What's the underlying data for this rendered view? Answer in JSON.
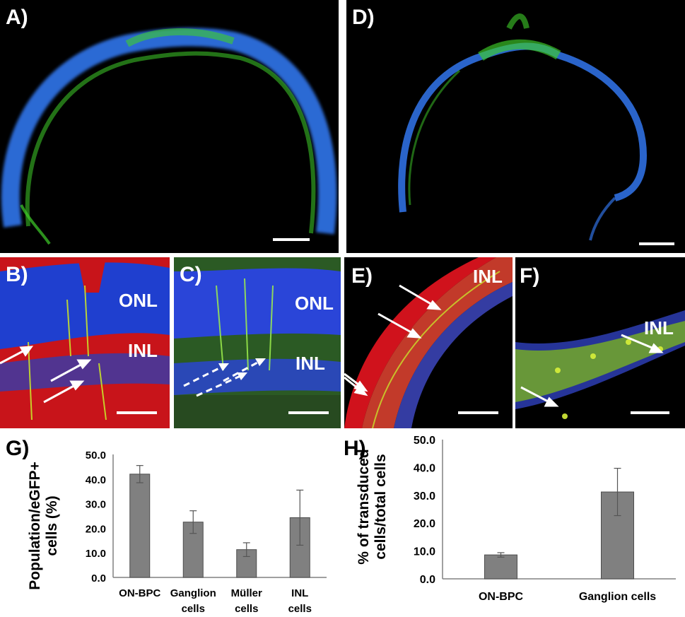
{
  "panels": {
    "A": {
      "label": "A)"
    },
    "B": {
      "label": "B)",
      "layers": [
        "ONL",
        "INL"
      ]
    },
    "C": {
      "label": "C)",
      "layers": [
        "ONL",
        "INL"
      ]
    },
    "D": {
      "label": "D)"
    },
    "E": {
      "label": "E)",
      "layers": [
        "INL"
      ]
    },
    "F": {
      "label": "F)",
      "layers": [
        "INL"
      ]
    }
  },
  "colors": {
    "dapi_blue": "#2f6fe0",
    "egfp_green": "#3fcf2a",
    "red_stain": "#e0161b",
    "bar_fill": "#808080",
    "bar_stroke": "#4d4d4d"
  },
  "chart_data": [
    {
      "label": "G)",
      "type": "bar",
      "categories": [
        "ON-BPC",
        "Ganglion cells",
        "Müller cells",
        "INL cells"
      ],
      "values": [
        42.0,
        22.5,
        11.3,
        24.3
      ],
      "errors": [
        3.5,
        4.6,
        2.8,
        11.2
      ],
      "ylabel": [
        "Population/eGFP+",
        "cells (%)"
      ],
      "ylim": [
        0,
        50
      ],
      "yticks": [
        "0.0",
        "10.0",
        "20.0",
        "30.0",
        "40.0",
        "50.0"
      ],
      "grid": false
    },
    {
      "label": "H)",
      "type": "bar",
      "categories": [
        "ON-BPC",
        "Ganglion cells"
      ],
      "values": [
        8.6,
        31.2
      ],
      "errors": [
        0.8,
        8.5
      ],
      "ylabel": [
        "% of transduced",
        "cells/total cells"
      ],
      "ylim": [
        0,
        50
      ],
      "yticks": [
        "0.0",
        "10.0",
        "20.0",
        "30.0",
        "40.0",
        "50.0"
      ],
      "grid": false
    }
  ]
}
